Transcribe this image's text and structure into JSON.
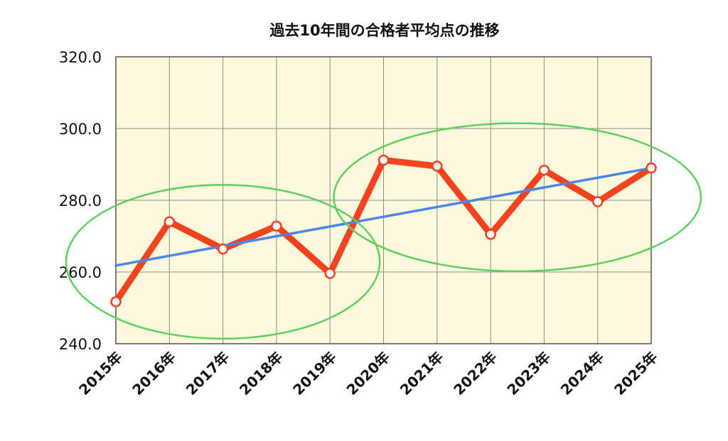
{
  "chart_data": {
    "type": "line",
    "title": "過去10年間の合格者平均点の推移",
    "xlabel": "",
    "ylabel": "",
    "categories": [
      "2015年",
      "2016年",
      "2017年",
      "2018年",
      "2019年",
      "2020年",
      "2021年",
      "2022年",
      "2023年",
      "2024年",
      "2025年"
    ],
    "series": [
      {
        "values": [
          251.7,
          274.0,
          266.4,
          272.8,
          259.6,
          291.2,
          289.5,
          270.5,
          288.4,
          279.6,
          289.0
        ]
      }
    ],
    "trendline": {
      "start": 261.8,
      "end": 289.0
    },
    "ylim": [
      240,
      320
    ],
    "yticks": [
      "240.0",
      "260.0",
      "280.0",
      "300.0",
      "320.0"
    ],
    "grid": true,
    "colors": {
      "plot_background": "#fcf9dd",
      "grid": "#8c8c8c",
      "series_line": "#f5431f",
      "trendline": "#4a86e8",
      "highlight_ellipse": "#5fcf5f"
    },
    "highlight_groups": [
      {
        "from": "2015年",
        "to": "2019年"
      },
      {
        "from": "2020年",
        "to": "2025年"
      }
    ]
  }
}
